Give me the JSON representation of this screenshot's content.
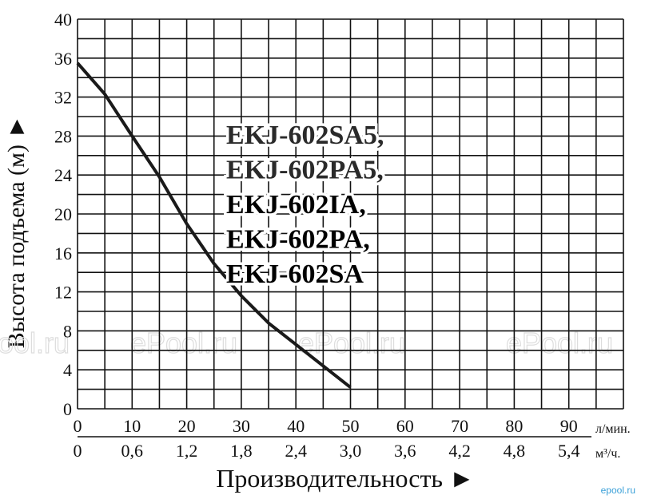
{
  "chart_data": {
    "type": "line",
    "y_label": "Высота подъема (м) ►",
    "x_label": "Производительность ►",
    "x_unit": "л/мин.",
    "x2_unit": "м³/ч.",
    "annotation": [
      "EKJ-602SA5,",
      "EKJ-602PA5,",
      "EKJ-602IA,",
      "EKJ-602PA,",
      "EKJ-602SA"
    ],
    "watermarks": [
      "ePool.ru",
      "ePool.ru",
      "ePool.ru",
      "ePool.ru"
    ],
    "corner_mark": "epool.ru",
    "x": [
      0,
      5,
      10,
      15,
      20,
      25,
      30,
      35,
      40,
      45,
      50
    ],
    "values": [
      35.5,
      32.3,
      28,
      23.8,
      19,
      14.9,
      11.6,
      8.8,
      6.6,
      4.4,
      2.2
    ],
    "color": "#1a1a1a",
    "xlim": [
      0,
      100
    ],
    "ylim": [
      0,
      40
    ],
    "x2lim": [
      0,
      6
    ],
    "xticks": [
      0,
      10,
      20,
      30,
      40,
      50,
      60,
      70,
      80,
      90
    ],
    "x2ticks": [
      0,
      {
        "value": 0.6,
        "label": "0,6"
      },
      {
        "value": 1.2,
        "label": "1,2"
      },
      {
        "value": 1.8,
        "label": "1,8"
      },
      {
        "value": 2.4,
        "label": "2,4"
      },
      {
        "value": 3.0,
        "label": "3,0"
      },
      {
        "value": 3.6,
        "label": "3,6"
      },
      {
        "value": 4.2,
        "label": "4,2"
      },
      {
        "value": 4.8,
        "label": "4,8"
      },
      {
        "value": 5.4,
        "label": "5,4"
      }
    ],
    "yticks": [
      0,
      4,
      8,
      12,
      16,
      20,
      24,
      28,
      32,
      36,
      40
    ],
    "xgrid": [
      0,
      5,
      10,
      15,
      20,
      25,
      30,
      35,
      40,
      45,
      50,
      55,
      60,
      65,
      70,
      75,
      80,
      85,
      90,
      95,
      100
    ],
    "ygrid": [
      0,
      2,
      4,
      6,
      8,
      10,
      12,
      14,
      16,
      18,
      20,
      22,
      24,
      26,
      28,
      30,
      32,
      34,
      36,
      38,
      40
    ]
  }
}
